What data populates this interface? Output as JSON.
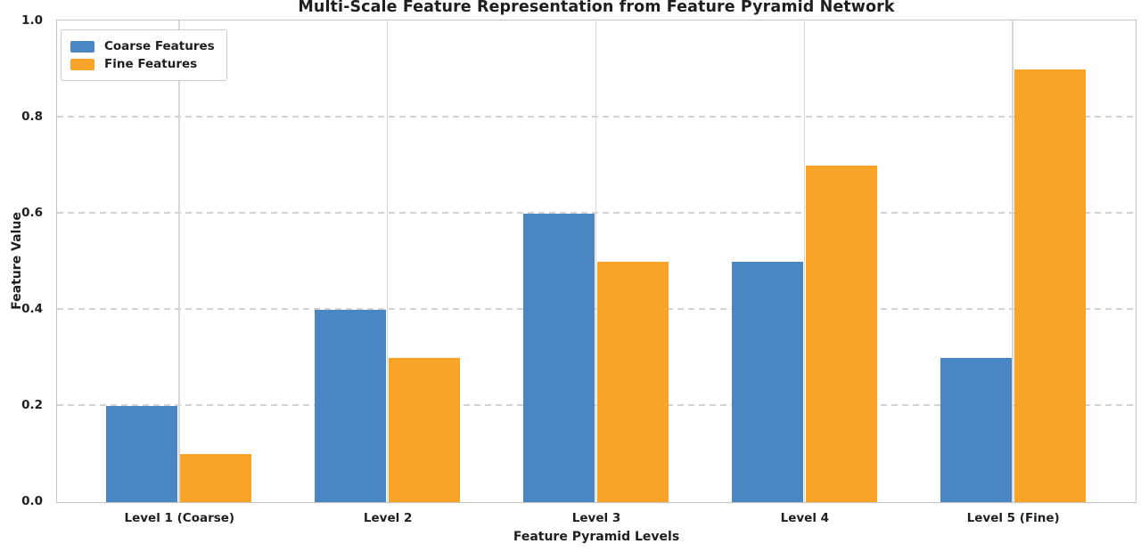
{
  "chart_data": {
    "type": "bar",
    "title": "Multi-Scale Feature Representation from Feature Pyramid Network",
    "xlabel": "Feature Pyramid Levels",
    "ylabel": "Feature Value",
    "categories": [
      "Level 1 (Coarse)",
      "Level 2",
      "Level 3",
      "Level 4",
      "Level 5 (Fine)"
    ],
    "series": [
      {
        "name": "Coarse Features",
        "color": "#4a85c4",
        "values": [
          0.2,
          0.4,
          0.6,
          0.5,
          0.3
        ]
      },
      {
        "name": "Fine Features",
        "color": "#f7a428",
        "values": [
          0.1,
          0.3,
          0.5,
          0.7,
          0.9
        ]
      }
    ],
    "ylim": [
      0.0,
      1.0
    ],
    "yticks": [
      0.0,
      0.2,
      0.4,
      0.6,
      0.8,
      1.0
    ],
    "ytick_labels": [
      "0.0",
      "0.2",
      "0.4",
      "0.6",
      "0.8",
      "1.0"
    ],
    "grid": {
      "horizontal": "dashed",
      "vertical": "solid",
      "color": "#d4d4d4"
    },
    "legend_position": "upper-left",
    "style": {
      "text_color": "#1f1f1f",
      "spine_color": "#c3c3c3",
      "background": "#ffffff"
    }
  }
}
